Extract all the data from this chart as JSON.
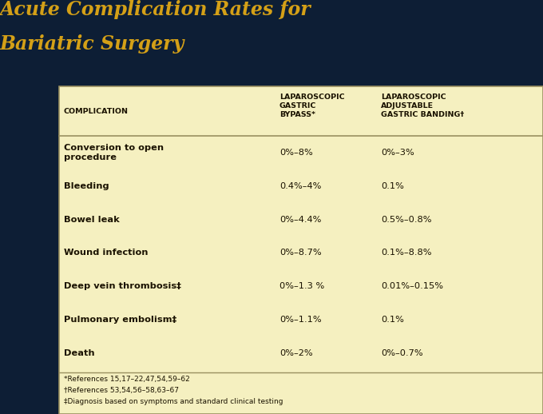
{
  "title_line1": "Acute Complication Rates for",
  "title_line2": "Bariatric Surgery",
  "title_color": "#D4A017",
  "bg_color": "#0D1E35",
  "table_bg": "#F5F0C0",
  "table_border": "#9A9060",
  "header_row": [
    "COMPLICATION",
    "LAPAROSCOPIC\nGASTRIC\nBYPASS*",
    "LAPAROSCOPIC\nADJUSTABLE\nGASTRIC BANDING†"
  ],
  "rows": [
    [
      "Conversion to open\nprocedure",
      "0%–8%",
      "0%–3%"
    ],
    [
      "Bleeding",
      "0.4%–4%",
      "0.1%"
    ],
    [
      "Bowel leak",
      "0%–4.4%",
      "0.5%–0.8%"
    ],
    [
      "Wound infection",
      "0%–8.7%",
      "0.1%–8.8%"
    ],
    [
      "Deep vein thrombosis‡",
      "0%–1.3 %",
      "0.01%–0.15%"
    ],
    [
      "Pulmonary embolism‡",
      "0%–1.1%",
      "0.1%"
    ],
    [
      "Death",
      "0%–2%",
      "0%–0.7%"
    ]
  ],
  "footnotes": [
    "*References 15,17–22,47,54,59–62",
    "†References 53,54,56–58,63–67",
    "‡Diagnosis based on symptoms and standard clinical testing"
  ],
  "header_text_color": "#1A1200",
  "row_text_color": "#1A1200",
  "footnote_color": "#1A1200",
  "title_fontsize": 17,
  "header_fontsize": 6.8,
  "row_fontsize": 8.2,
  "footnote_fontsize": 6.5
}
